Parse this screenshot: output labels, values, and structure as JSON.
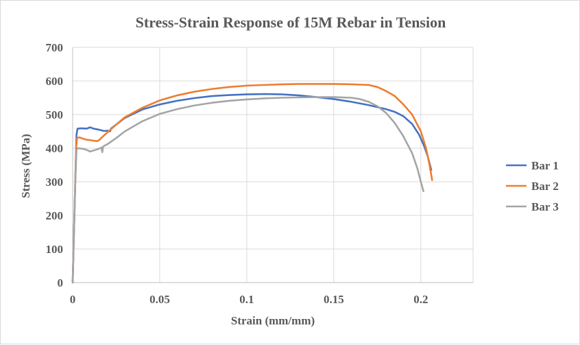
{
  "chart_data": {
    "type": "line",
    "title": "Stress-Strain  Response of 15M Rebar in Tension",
    "xlabel": "Strain (mm/mm)",
    "ylabel": "Stress (MPa)",
    "xlim": [
      0,
      0.23
    ],
    "ylim": [
      0,
      700
    ],
    "x_ticks": [
      0,
      0.05,
      0.1,
      0.15,
      0.2
    ],
    "x_tick_labels": [
      "0",
      "0.05",
      "0.1",
      "0.15",
      "0.2"
    ],
    "y_ticks": [
      0,
      100,
      200,
      300,
      400,
      500,
      600,
      700
    ],
    "y_tick_labels": [
      "0",
      "100",
      "200",
      "300",
      "400",
      "500",
      "600",
      "700"
    ],
    "grid": true,
    "legend_position": "right",
    "series": [
      {
        "name": "Bar 1",
        "color": "#4472c4",
        "points": [
          [
            0,
            0
          ],
          [
            0.0015,
            300
          ],
          [
            0.0022,
            440
          ],
          [
            0.0028,
            458
          ],
          [
            0.005,
            459
          ],
          [
            0.008,
            458
          ],
          [
            0.01,
            462
          ],
          [
            0.012,
            458
          ],
          [
            0.015,
            455
          ],
          [
            0.018,
            451
          ],
          [
            0.02,
            452
          ],
          [
            0.0215,
            450
          ],
          [
            0.022,
            458
          ],
          [
            0.025,
            470
          ],
          [
            0.03,
            490
          ],
          [
            0.04,
            515
          ],
          [
            0.05,
            530
          ],
          [
            0.06,
            541
          ],
          [
            0.07,
            549
          ],
          [
            0.08,
            555
          ],
          [
            0.09,
            558
          ],
          [
            0.1,
            560
          ],
          [
            0.11,
            561
          ],
          [
            0.12,
            560
          ],
          [
            0.13,
            557
          ],
          [
            0.14,
            552
          ],
          [
            0.15,
            546
          ],
          [
            0.16,
            538
          ],
          [
            0.17,
            528
          ],
          [
            0.18,
            516
          ],
          [
            0.185,
            508
          ],
          [
            0.19,
            495
          ],
          [
            0.195,
            472
          ],
          [
            0.199,
            440
          ],
          [
            0.202,
            405
          ],
          [
            0.204,
            375
          ],
          [
            0.206,
            335
          ]
        ]
      },
      {
        "name": "Bar 2",
        "color": "#ed7d31",
        "points": [
          [
            0,
            0
          ],
          [
            0.0015,
            300
          ],
          [
            0.002,
            400
          ],
          [
            0.0025,
            430
          ],
          [
            0.004,
            432
          ],
          [
            0.006,
            428
          ],
          [
            0.008,
            425
          ],
          [
            0.01,
            424
          ],
          [
            0.012,
            422
          ],
          [
            0.014,
            421
          ],
          [
            0.015,
            423
          ],
          [
            0.017,
            433
          ],
          [
            0.02,
            447
          ],
          [
            0.025,
            470
          ],
          [
            0.03,
            492
          ],
          [
            0.04,
            520
          ],
          [
            0.05,
            542
          ],
          [
            0.06,
            557
          ],
          [
            0.07,
            568
          ],
          [
            0.08,
            576
          ],
          [
            0.09,
            582
          ],
          [
            0.1,
            586
          ],
          [
            0.11,
            588
          ],
          [
            0.12,
            590
          ],
          [
            0.13,
            591
          ],
          [
            0.14,
            591
          ],
          [
            0.15,
            591
          ],
          [
            0.16,
            590
          ],
          [
            0.17,
            588
          ],
          [
            0.175,
            582
          ],
          [
            0.18,
            570
          ],
          [
            0.185,
            555
          ],
          [
            0.19,
            530
          ],
          [
            0.195,
            500
          ],
          [
            0.2,
            450
          ],
          [
            0.203,
            400
          ],
          [
            0.205,
            350
          ],
          [
            0.2065,
            305
          ]
        ]
      },
      {
        "name": "Bar 3",
        "color": "#a5a5a5",
        "points": [
          [
            0,
            0
          ],
          [
            0.0015,
            300
          ],
          [
            0.0022,
            395
          ],
          [
            0.003,
            400
          ],
          [
            0.006,
            398
          ],
          [
            0.008,
            395
          ],
          [
            0.01,
            390
          ],
          [
            0.012,
            393
          ],
          [
            0.015,
            398
          ],
          [
            0.0165,
            402
          ],
          [
            0.017,
            388
          ],
          [
            0.0175,
            405
          ],
          [
            0.02,
            412
          ],
          [
            0.025,
            430
          ],
          [
            0.03,
            450
          ],
          [
            0.04,
            480
          ],
          [
            0.05,
            502
          ],
          [
            0.06,
            516
          ],
          [
            0.07,
            527
          ],
          [
            0.08,
            535
          ],
          [
            0.09,
            541
          ],
          [
            0.1,
            545
          ],
          [
            0.11,
            548
          ],
          [
            0.12,
            550
          ],
          [
            0.13,
            551
          ],
          [
            0.14,
            552
          ],
          [
            0.15,
            552
          ],
          [
            0.16,
            550
          ],
          [
            0.165,
            546
          ],
          [
            0.17,
            538
          ],
          [
            0.175,
            525
          ],
          [
            0.18,
            505
          ],
          [
            0.185,
            475
          ],
          [
            0.19,
            435
          ],
          [
            0.195,
            385
          ],
          [
            0.198,
            340
          ],
          [
            0.2,
            300
          ],
          [
            0.2015,
            272
          ]
        ]
      }
    ]
  }
}
